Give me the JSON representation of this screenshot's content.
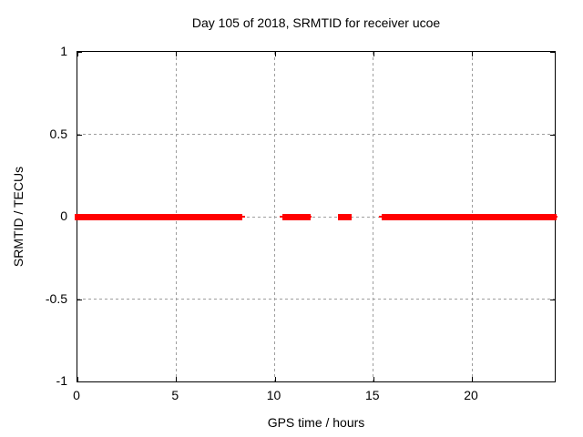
{
  "page": {
    "background": "#ffffff"
  },
  "chart_data": {
    "type": "scatter",
    "title": "Day 105 of 2018, SRMTID for receiver ucoe",
    "xlabel": "GPS time / hours",
    "ylabel": "SRMTID / TECUs",
    "xlim": [
      0,
      24.2
    ],
    "ylim": [
      -1,
      1
    ],
    "xticks": [
      0,
      5,
      10,
      15,
      20
    ],
    "yticks": [
      1,
      0.5,
      0,
      -0.5,
      -1
    ],
    "grid": true,
    "legend": "none",
    "marker": "plus",
    "colors": {
      "series": "#ff0000",
      "grid": "#9e9e9e",
      "border": "#000000",
      "text": "#000000"
    },
    "series": [
      {
        "name": "SRMTID",
        "y": 0,
        "segments_hours": [
          [
            0,
            8.07
          ],
          [
            10.6,
            11.62
          ],
          [
            13.35,
            13.73
          ],
          [
            15.62,
            24.1
          ]
        ],
        "sparse_points_hours": [
          8.18,
          8.32,
          10.42,
          11.68,
          15.45,
          15.55,
          24.15
        ]
      }
    ]
  }
}
